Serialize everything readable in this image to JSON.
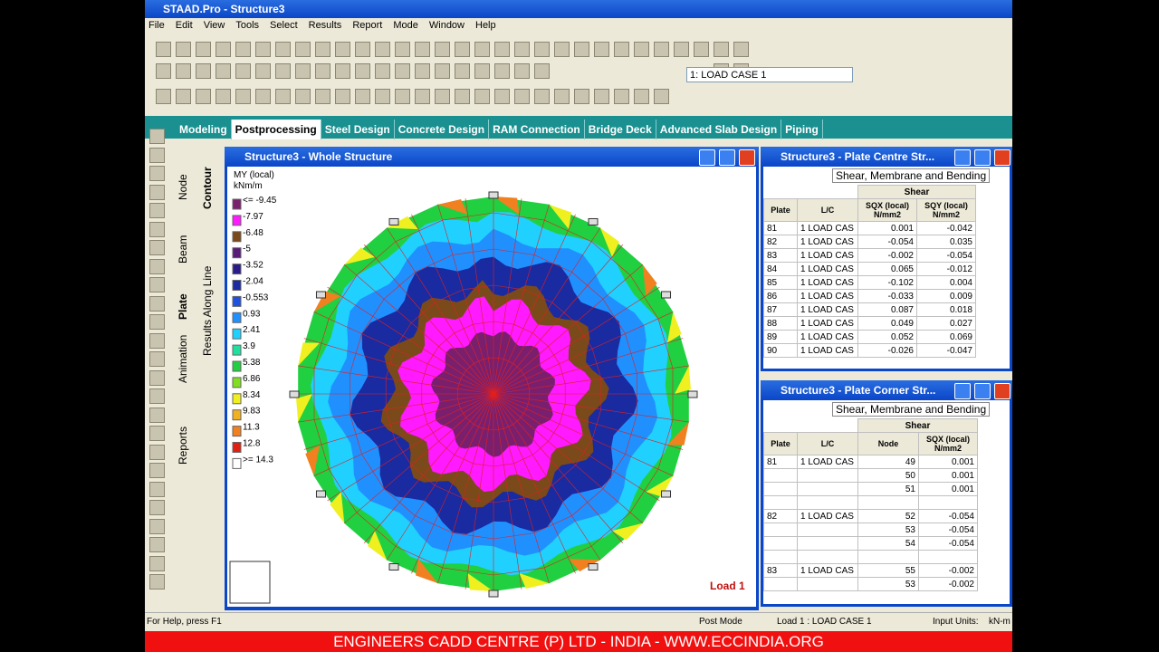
{
  "app_title": "STAAD.Pro - Structure3",
  "menu": [
    "File",
    "Edit",
    "View",
    "Tools",
    "Select",
    "Results",
    "Report",
    "Mode",
    "Window",
    "Help"
  ],
  "load_case_select": "1: LOAD CASE 1",
  "tabs": [
    "Modeling",
    "Postprocessing",
    "Steel Design",
    "Concrete Design",
    "RAM Connection",
    "Bridge Deck",
    "Advanced Slab Design",
    "Piping"
  ],
  "side_tabs": [
    "Node",
    "Beam",
    "Plate",
    "Animation",
    "Reports"
  ],
  "side_tabs_2": [
    "Contour",
    "Results Along Line"
  ],
  "structure_window": {
    "title": "Structure3 - Whole Structure",
    "load_label": "Load 1",
    "legend": {
      "title": "MY (local)",
      "unit": "kNm/m",
      "items": [
        {
          "label": "<= -9.45",
          "color": "#7a1f6e"
        },
        {
          "label": "-7.97",
          "color": "#ff1aff"
        },
        {
          "label": "-6.48",
          "color": "#7a4a1a"
        },
        {
          "label": "-5",
          "color": "#5a1a7a"
        },
        {
          "label": "-3.52",
          "color": "#2a1a8a"
        },
        {
          "label": "-2.04",
          "color": "#1a2aa0"
        },
        {
          "label": "-0.553",
          "color": "#2050e0"
        },
        {
          "label": "0.93",
          "color": "#2090ff"
        },
        {
          "label": "2.41",
          "color": "#20d0ff"
        },
        {
          "label": "3.9",
          "color": "#20e0a0"
        },
        {
          "label": "5.38",
          "color": "#20d040"
        },
        {
          "label": "6.86",
          "color": "#80e020"
        },
        {
          "label": "8.34",
          "color": "#f0f020"
        },
        {
          "label": "9.83",
          "color": "#f0b020"
        },
        {
          "label": "11.3",
          "color": "#f08020"
        },
        {
          "label": "12.8",
          "color": "#e02010"
        },
        {
          "label": ">= 14.3",
          "color": "#ffffff"
        }
      ]
    }
  },
  "table_window_1": {
    "title": "Structure3 - Plate Centre Str...",
    "tab": "Shear, Membrane and Bending",
    "group": "Shear",
    "columns": [
      {
        "name": "Plate"
      },
      {
        "name": "L/C"
      },
      {
        "name": "SQX (local)",
        "unit": "N/mm2"
      },
      {
        "name": "SQY (local)",
        "unit": "N/mm2"
      }
    ],
    "rows": [
      [
        "81",
        "1 LOAD CAS",
        "0.001",
        "-0.042"
      ],
      [
        "82",
        "1 LOAD CAS",
        "-0.054",
        "0.035"
      ],
      [
        "83",
        "1 LOAD CAS",
        "-0.002",
        "-0.054"
      ],
      [
        "84",
        "1 LOAD CAS",
        "0.065",
        "-0.012"
      ],
      [
        "85",
        "1 LOAD CAS",
        "-0.102",
        "0.004"
      ],
      [
        "86",
        "1 LOAD CAS",
        "-0.033",
        "0.009"
      ],
      [
        "87",
        "1 LOAD CAS",
        "0.087",
        "0.018"
      ],
      [
        "88",
        "1 LOAD CAS",
        "0.049",
        "0.027"
      ],
      [
        "89",
        "1 LOAD CAS",
        "0.052",
        "0.069"
      ],
      [
        "90",
        "1 LOAD CAS",
        "-0.026",
        "-0.047"
      ]
    ]
  },
  "table_window_2": {
    "title": "Structure3 - Plate Corner Str...",
    "tab": "Shear, Membrane and Bending",
    "group": "Shear",
    "columns": [
      {
        "name": "Plate"
      },
      {
        "name": "L/C"
      },
      {
        "name": "Node"
      },
      {
        "name": "SQX (local)",
        "unit": "N/mm2"
      }
    ],
    "rows": [
      [
        "81",
        "1 LOAD CAS",
        "49",
        "0.001"
      ],
      [
        null,
        null,
        "50",
        "0.001"
      ],
      [
        null,
        null,
        "51",
        "0.001"
      ],
      [
        null,
        null,
        null,
        null
      ],
      [
        "82",
        "1 LOAD CAS",
        "52",
        "-0.054"
      ],
      [
        null,
        null,
        "53",
        "-0.054"
      ],
      [
        null,
        null,
        "54",
        "-0.054"
      ],
      [
        null,
        null,
        null,
        null
      ],
      [
        "83",
        "1 LOAD CAS",
        "55",
        "-0.002"
      ],
      [
        null,
        null,
        "53",
        "-0.002"
      ]
    ]
  },
  "status_bar": {
    "help": "For Help, press F1",
    "mode": "Post Mode",
    "load": "Load 1 : LOAD CASE 1",
    "units_label": "Input Units:",
    "units": "kN-m"
  },
  "banner": "ENGINEERS CADD CENTRE (P) LTD - INDIA - WWW.ECCINDIA.ORG"
}
